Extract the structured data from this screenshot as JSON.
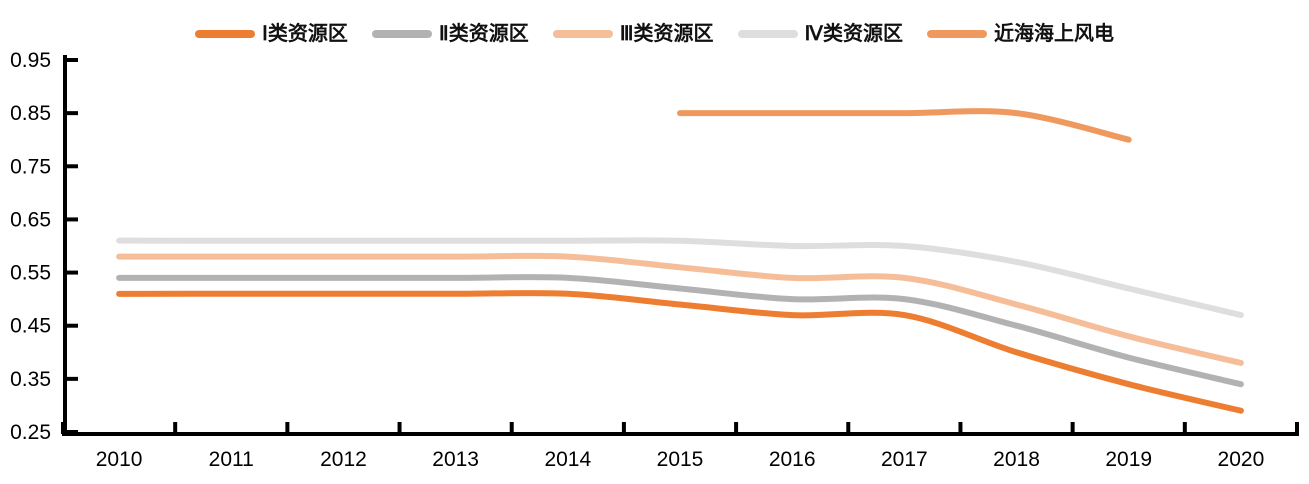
{
  "chart_data": {
    "type": "line",
    "title": "",
    "xlabel": "",
    "ylabel": "",
    "x": [
      2010,
      2011,
      2012,
      2013,
      2014,
      2015,
      2016,
      2017,
      2018,
      2019,
      2020
    ],
    "series": [
      {
        "name": "Ⅰ类资源区",
        "color": "#ED7D31",
        "values": [
          0.51,
          0.51,
          0.51,
          0.51,
          0.51,
          0.49,
          0.47,
          0.47,
          0.4,
          0.34,
          0.29
        ]
      },
      {
        "name": "Ⅱ类资源区",
        "color": "#B2B2B2",
        "values": [
          0.54,
          0.54,
          0.54,
          0.54,
          0.54,
          0.52,
          0.5,
          0.5,
          0.45,
          0.39,
          0.34
        ]
      },
      {
        "name": "Ⅲ类资源区",
        "color": "#F5BE99",
        "values": [
          0.58,
          0.58,
          0.58,
          0.58,
          0.58,
          0.56,
          0.54,
          0.54,
          0.49,
          0.43,
          0.38
        ]
      },
      {
        "name": "Ⅳ类资源区",
        "color": "#DEDEDE",
        "values": [
          0.61,
          0.61,
          0.61,
          0.61,
          0.61,
          0.61,
          0.6,
          0.6,
          0.57,
          0.52,
          0.47
        ]
      },
      {
        "name": "近海海上风电",
        "color": "#F0995E",
        "values": [
          null,
          null,
          null,
          null,
          null,
          0.85,
          0.85,
          0.85,
          0.85,
          0.8,
          null
        ]
      }
    ],
    "ylim": [
      0.25,
      0.95
    ],
    "yticks": [
      "0.25",
      "0.35",
      "0.45",
      "0.55",
      "0.65",
      "0.75",
      "0.85",
      "0.95"
    ],
    "xticklabels": [
      "2010",
      "2011",
      "2012",
      "2013",
      "2014",
      "2015",
      "2016",
      "2017",
      "2018",
      "2019",
      "2020"
    ],
    "legend_position": "top",
    "grid": false,
    "smooth": true,
    "line_width": 6,
    "axis_color": "#000000",
    "text_color": "#000000"
  }
}
